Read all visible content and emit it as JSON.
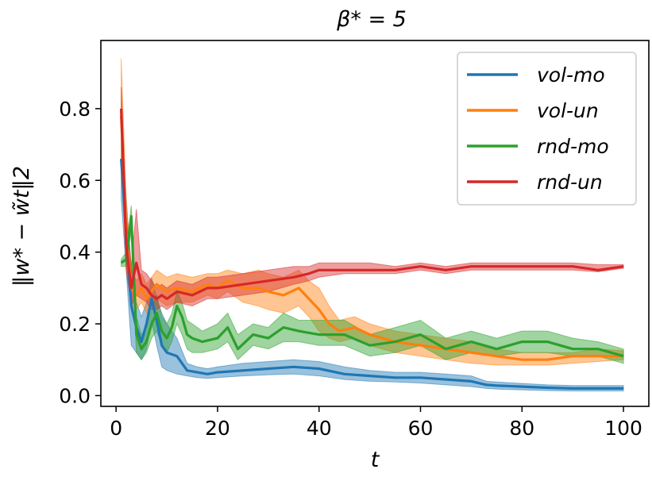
{
  "chart_data": {
    "type": "line",
    "title": "β* = 5",
    "xlabel": "t",
    "ylabel": "‖w* − w̃t‖2",
    "xlim": [
      -3,
      105
    ],
    "ylim": [
      -0.03,
      0.99
    ],
    "xticks": [
      0,
      20,
      40,
      60,
      80,
      100
    ],
    "xtick_labels": [
      "0",
      "20",
      "40",
      "60",
      "80",
      "100"
    ],
    "yticks": [
      0.0,
      0.2,
      0.4,
      0.6,
      0.8
    ],
    "ytick_labels": [
      "0.0",
      "0.2",
      "0.4",
      "0.6",
      "0.8"
    ],
    "grid": false,
    "legend_position": "top-right",
    "series": [
      {
        "name": "vol-mo",
        "color": "#1f77b4",
        "x": [
          1,
          2,
          3,
          4,
          5,
          6,
          7,
          8,
          9,
          10,
          12,
          14,
          16,
          18,
          20,
          25,
          30,
          35,
          40,
          45,
          50,
          55,
          60,
          65,
          70,
          73,
          75,
          80,
          85,
          90,
          95,
          100
        ],
        "mean": [
          0.66,
          0.45,
          0.25,
          0.19,
          0.15,
          0.2,
          0.27,
          0.21,
          0.14,
          0.12,
          0.11,
          0.07,
          0.065,
          0.06,
          0.065,
          0.07,
          0.075,
          0.08,
          0.075,
          0.06,
          0.055,
          0.05,
          0.05,
          0.045,
          0.04,
          0.03,
          0.028,
          0.025,
          0.022,
          0.02,
          0.02,
          0.02
        ],
        "lower": [
          0.55,
          0.35,
          0.14,
          0.12,
          0.1,
          0.13,
          0.21,
          0.14,
          0.08,
          0.07,
          0.06,
          0.055,
          0.05,
          0.048,
          0.05,
          0.055,
          0.058,
          0.06,
          0.055,
          0.045,
          0.04,
          0.038,
          0.035,
          0.03,
          0.025,
          0.02,
          0.018,
          0.016,
          0.014,
          0.013,
          0.013,
          0.013
        ],
        "upper": [
          0.76,
          0.55,
          0.36,
          0.26,
          0.22,
          0.26,
          0.33,
          0.27,
          0.23,
          0.2,
          0.16,
          0.09,
          0.08,
          0.075,
          0.08,
          0.09,
          0.095,
          0.1,
          0.095,
          0.08,
          0.07,
          0.065,
          0.065,
          0.06,
          0.055,
          0.04,
          0.038,
          0.034,
          0.03,
          0.028,
          0.028,
          0.028
        ]
      },
      {
        "name": "vol-un",
        "color": "#ff7f0e",
        "x": [
          1,
          2,
          3,
          4,
          5,
          6,
          8,
          10,
          12,
          15,
          18,
          20,
          22,
          25,
          28,
          30,
          33,
          36,
          38,
          40,
          42,
          44,
          47,
          50,
          55,
          60,
          65,
          70,
          75,
          80,
          85,
          90,
          95,
          100
        ],
        "mean": [
          0.78,
          0.45,
          0.3,
          0.28,
          0.3,
          0.27,
          0.31,
          0.29,
          0.3,
          0.29,
          0.31,
          0.3,
          0.32,
          0.3,
          0.3,
          0.29,
          0.28,
          0.3,
          0.27,
          0.24,
          0.2,
          0.18,
          0.19,
          0.17,
          0.15,
          0.14,
          0.13,
          0.12,
          0.11,
          0.1,
          0.1,
          0.11,
          0.11,
          0.11
        ],
        "lower": [
          0.66,
          0.36,
          0.25,
          0.24,
          0.26,
          0.23,
          0.27,
          0.25,
          0.26,
          0.26,
          0.28,
          0.27,
          0.29,
          0.26,
          0.25,
          0.24,
          0.23,
          0.25,
          0.22,
          0.18,
          0.16,
          0.15,
          0.16,
          0.14,
          0.12,
          0.11,
          0.1,
          0.09,
          0.085,
          0.085,
          0.085,
          0.09,
          0.095,
          0.1
        ],
        "upper": [
          0.94,
          0.55,
          0.35,
          0.32,
          0.34,
          0.31,
          0.35,
          0.33,
          0.34,
          0.33,
          0.34,
          0.34,
          0.35,
          0.34,
          0.35,
          0.34,
          0.33,
          0.35,
          0.32,
          0.3,
          0.25,
          0.21,
          0.22,
          0.2,
          0.18,
          0.17,
          0.16,
          0.15,
          0.13,
          0.12,
          0.12,
          0.12,
          0.13,
          0.125
        ]
      },
      {
        "name": "rnd-mo",
        "color": "#2ca02c",
        "x": [
          1,
          2,
          3,
          4,
          5,
          6,
          7,
          8,
          9,
          10,
          11,
          12,
          13,
          14,
          15,
          17,
          20,
          22,
          24,
          27,
          30,
          33,
          36,
          40,
          45,
          50,
          55,
          60,
          65,
          70,
          75,
          80,
          85,
          90,
          95,
          100
        ],
        "mean": [
          0.37,
          0.38,
          0.5,
          0.17,
          0.13,
          0.15,
          0.2,
          0.23,
          0.18,
          0.16,
          0.19,
          0.25,
          0.22,
          0.17,
          0.16,
          0.15,
          0.16,
          0.19,
          0.13,
          0.17,
          0.16,
          0.19,
          0.18,
          0.17,
          0.17,
          0.14,
          0.15,
          0.17,
          0.13,
          0.15,
          0.13,
          0.15,
          0.15,
          0.13,
          0.13,
          0.11
        ],
        "lower": [
          0.36,
          0.36,
          0.46,
          0.12,
          0.1,
          0.12,
          0.16,
          0.18,
          0.14,
          0.12,
          0.15,
          0.2,
          0.17,
          0.13,
          0.12,
          0.12,
          0.13,
          0.15,
          0.1,
          0.14,
          0.13,
          0.15,
          0.15,
          0.14,
          0.14,
          0.11,
          0.12,
          0.14,
          0.1,
          0.12,
          0.11,
          0.12,
          0.12,
          0.11,
          0.11,
          0.09
        ],
        "upper": [
          0.38,
          0.4,
          0.53,
          0.22,
          0.17,
          0.19,
          0.24,
          0.28,
          0.22,
          0.2,
          0.23,
          0.29,
          0.26,
          0.21,
          0.2,
          0.18,
          0.2,
          0.23,
          0.17,
          0.2,
          0.19,
          0.23,
          0.21,
          0.21,
          0.21,
          0.17,
          0.19,
          0.21,
          0.16,
          0.18,
          0.16,
          0.18,
          0.18,
          0.16,
          0.15,
          0.13
        ]
      },
      {
        "name": "rnd-un",
        "color": "#d62728",
        "x": [
          1,
          2,
          3,
          4,
          5,
          6,
          7,
          8,
          9,
          10,
          12,
          15,
          18,
          20,
          25,
          30,
          35,
          38,
          40,
          45,
          50,
          55,
          60,
          65,
          70,
          75,
          80,
          85,
          90,
          95,
          100
        ],
        "mean": [
          0.8,
          0.42,
          0.3,
          0.37,
          0.31,
          0.3,
          0.28,
          0.27,
          0.28,
          0.27,
          0.29,
          0.28,
          0.3,
          0.3,
          0.31,
          0.32,
          0.33,
          0.34,
          0.35,
          0.35,
          0.35,
          0.35,
          0.36,
          0.35,
          0.36,
          0.36,
          0.36,
          0.36,
          0.36,
          0.35,
          0.36
        ],
        "lower": [
          0.75,
          0.35,
          0.25,
          0.28,
          0.27,
          0.26,
          0.24,
          0.24,
          0.25,
          0.24,
          0.26,
          0.25,
          0.27,
          0.27,
          0.28,
          0.29,
          0.31,
          0.32,
          0.33,
          0.34,
          0.34,
          0.34,
          0.35,
          0.34,
          0.35,
          0.35,
          0.35,
          0.35,
          0.35,
          0.345,
          0.355
        ],
        "upper": [
          0.86,
          0.5,
          0.36,
          0.52,
          0.35,
          0.34,
          0.32,
          0.3,
          0.31,
          0.3,
          0.32,
          0.31,
          0.33,
          0.33,
          0.34,
          0.35,
          0.36,
          0.36,
          0.37,
          0.37,
          0.37,
          0.36,
          0.37,
          0.36,
          0.37,
          0.37,
          0.37,
          0.37,
          0.37,
          0.365,
          0.365
        ]
      }
    ]
  }
}
